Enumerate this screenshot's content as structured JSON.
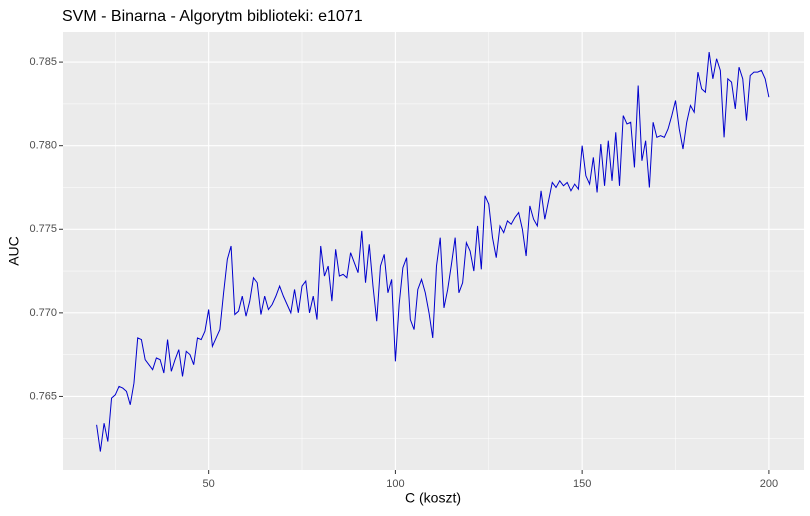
{
  "chart_data": {
    "type": "line",
    "title": "SVM - Binarna - Algorytm biblioteki: e1071",
    "x_label": "C (koszt)",
    "y_label": "AUC",
    "x": [
      20,
      21,
      22,
      23,
      24,
      25,
      26,
      27,
      28,
      29,
      30,
      31,
      32,
      33,
      34,
      35,
      36,
      37,
      38,
      39,
      40,
      41,
      42,
      43,
      44,
      45,
      46,
      47,
      48,
      49,
      50,
      51,
      52,
      53,
      54,
      55,
      56,
      57,
      58,
      59,
      60,
      61,
      62,
      63,
      64,
      65,
      66,
      67,
      68,
      69,
      70,
      71,
      72,
      73,
      74,
      75,
      76,
      77,
      78,
      79,
      80,
      81,
      82,
      83,
      84,
      85,
      86,
      87,
      88,
      89,
      90,
      91,
      92,
      93,
      94,
      95,
      96,
      97,
      98,
      99,
      100,
      101,
      102,
      103,
      104,
      105,
      106,
      107,
      108,
      109,
      110,
      111,
      112,
      113,
      114,
      115,
      116,
      117,
      118,
      119,
      120,
      121,
      122,
      123,
      124,
      125,
      126,
      127,
      128,
      129,
      130,
      131,
      132,
      133,
      134,
      135,
      136,
      137,
      138,
      139,
      140,
      141,
      142,
      143,
      144,
      145,
      146,
      147,
      148,
      149,
      150,
      151,
      152,
      153,
      154,
      155,
      156,
      157,
      158,
      159,
      160,
      161,
      162,
      163,
      164,
      165,
      166,
      167,
      168,
      169,
      170,
      171,
      172,
      173,
      174,
      175,
      176,
      177,
      178,
      179,
      180,
      181,
      182,
      183,
      184,
      185,
      186,
      187,
      188,
      189,
      190,
      191,
      192,
      193,
      194,
      195,
      196,
      197,
      198,
      199,
      200
    ],
    "series": [
      {
        "color": "#0000CD",
        "values": [
          0.7633,
          0.7617,
          0.7634,
          0.7623,
          0.7649,
          0.7651,
          0.7656,
          0.7655,
          0.7653,
          0.7645,
          0.7658,
          0.7685,
          0.7684,
          0.7672,
          0.7669,
          0.7666,
          0.7673,
          0.7672,
          0.7664,
          0.7684,
          0.7665,
          0.7672,
          0.7678,
          0.7662,
          0.7677,
          0.7675,
          0.7669,
          0.7685,
          0.7684,
          0.7689,
          0.7702,
          0.768,
          0.7685,
          0.769,
          0.7712,
          0.7732,
          0.774,
          0.7699,
          0.7701,
          0.771,
          0.7698,
          0.7707,
          0.7721,
          0.7718,
          0.7699,
          0.771,
          0.7702,
          0.7705,
          0.771,
          0.7716,
          0.771,
          0.7705,
          0.77,
          0.7714,
          0.77,
          0.7716,
          0.7719,
          0.77,
          0.771,
          0.7696,
          0.774,
          0.7722,
          0.7728,
          0.7707,
          0.7738,
          0.7722,
          0.7723,
          0.7721,
          0.7736,
          0.773,
          0.7724,
          0.7749,
          0.7718,
          0.7741,
          0.7716,
          0.7695,
          0.7728,
          0.7735,
          0.7712,
          0.772,
          0.7671,
          0.7705,
          0.7727,
          0.7733,
          0.7696,
          0.769,
          0.7714,
          0.772,
          0.7712,
          0.77,
          0.7685,
          0.7728,
          0.7745,
          0.7703,
          0.7714,
          0.7729,
          0.7745,
          0.7712,
          0.7718,
          0.7742,
          0.7737,
          0.7725,
          0.7752,
          0.7726,
          0.777,
          0.7765,
          0.7745,
          0.7733,
          0.7752,
          0.7748,
          0.7755,
          0.7753,
          0.7757,
          0.776,
          0.775,
          0.7734,
          0.7764,
          0.7756,
          0.7752,
          0.7773,
          0.7756,
          0.7767,
          0.7778,
          0.7775,
          0.7779,
          0.7776,
          0.7778,
          0.7773,
          0.7777,
          0.7774,
          0.78,
          0.7782,
          0.7777,
          0.7793,
          0.7772,
          0.7801,
          0.7776,
          0.7803,
          0.7779,
          0.7808,
          0.7776,
          0.7818,
          0.7813,
          0.7814,
          0.7787,
          0.7836,
          0.7791,
          0.7803,
          0.7775,
          0.7814,
          0.7805,
          0.7806,
          0.7805,
          0.781,
          0.7818,
          0.7827,
          0.781,
          0.7798,
          0.7814,
          0.7824,
          0.782,
          0.7844,
          0.7834,
          0.7832,
          0.7856,
          0.784,
          0.7852,
          0.7845,
          0.7805,
          0.784,
          0.7838,
          0.7822,
          0.7847,
          0.784,
          0.7815,
          0.7842,
          0.7844,
          0.7844,
          0.7845,
          0.784,
          0.7829
        ]
      }
    ],
    "xlim": [
      11,
      209.4
    ],
    "xticks": [
      50,
      100,
      150,
      200
    ],
    "ylim": [
      0.7606,
      0.7868
    ],
    "yticks": [
      0.765,
      {
        "value": 0.77,
        "label": "0.770"
      },
      0.775,
      {
        "value": 0.78,
        "label": "0.780"
      },
      0.785
    ],
    "grid": true
  }
}
